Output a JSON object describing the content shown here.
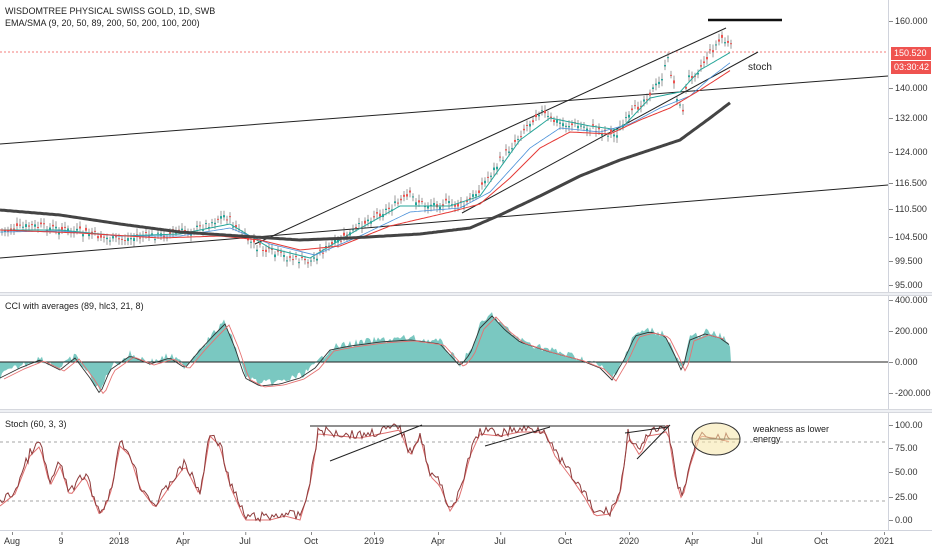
{
  "main": {
    "legend_title": "WISDOMTREE PHYSICAL SWISS GOLD, 1D, SWB",
    "legend_ma": "EMA/SMA (9, 20, 50, 89, 200, 50, 200, 100, 200)",
    "y_ticks": [
      "160.000",
      "150.520",
      "140.000",
      "132.000",
      "124.000",
      "116.500",
      "110.500",
      "104.500",
      "99.500",
      "95.000"
    ],
    "last_price": "150.520",
    "countdown": "03:30:42",
    "annotation_stoch": "stoch",
    "colors": {
      "price_badge": "#ef5350",
      "countdown_badge": "#ef5350",
      "candle_up": "#26a69a",
      "candle_down": "#ef5350"
    }
  },
  "cci": {
    "legend": "CCI with averages (89, hlc3, 21, 8)",
    "y_ticks": [
      "400.000",
      "200.000",
      "0.000",
      "-200.000"
    ],
    "colors": {
      "fill": "#4db6ac",
      "avg1": "#333333",
      "avg2": "#e57373"
    }
  },
  "stoch": {
    "legend": "Stoch (60, 3, 3)",
    "y_ticks": [
      "100.00",
      "75.00",
      "50.00",
      "25.00",
      "0.00"
    ],
    "annotation": "weakness as lower energy",
    "colors": {
      "k": "#8d3b3b",
      "d": "#e07070"
    }
  },
  "time_axis": [
    "Aug",
    "9",
    "2018",
    "Apr",
    "Jul",
    "Oct",
    "2019",
    "Apr",
    "Jul",
    "Oct",
    "2020",
    "Apr",
    "Jul",
    "Oct",
    "2021"
  ]
}
